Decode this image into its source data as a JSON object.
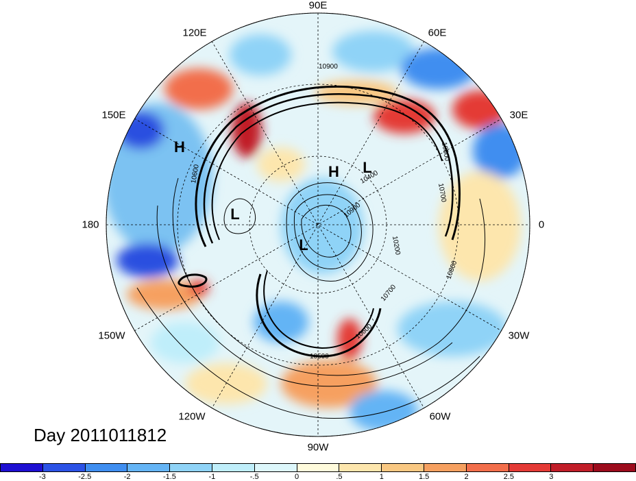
{
  "map": {
    "projection": "north-polar-stereographic",
    "longitude_labels": [
      "90E",
      "60E",
      "30E",
      "0",
      "30W",
      "60W",
      "90W",
      "120W",
      "150W",
      "180",
      "150E",
      "120E"
    ],
    "contour_labels": [
      "10900",
      "10800",
      "10600",
      "10700",
      "10900",
      "10800",
      "10700",
      "10600",
      "10500",
      "10200",
      "10400"
    ],
    "pressure_centers": [
      "H",
      "H",
      "L",
      "L",
      "L"
    ]
  },
  "title": "Day 2011011812",
  "colorbar": {
    "colors": [
      "#1e0fd2",
      "#2b52e6",
      "#3f8ef0",
      "#64b4f5",
      "#8fd3f7",
      "#bfeefa",
      "#ddf7fb",
      "#fffbdc",
      "#fde6ad",
      "#f9c882",
      "#f6a060",
      "#f26e4b",
      "#e43a36",
      "#c11d28",
      "#9c0b1c"
    ],
    "ticks": [
      "-3",
      "-2.5",
      "-2",
      "-1.5",
      "-1",
      "-.5",
      "0",
      ".5",
      "1",
      "1.5",
      "2",
      "2.5",
      "3"
    ]
  }
}
